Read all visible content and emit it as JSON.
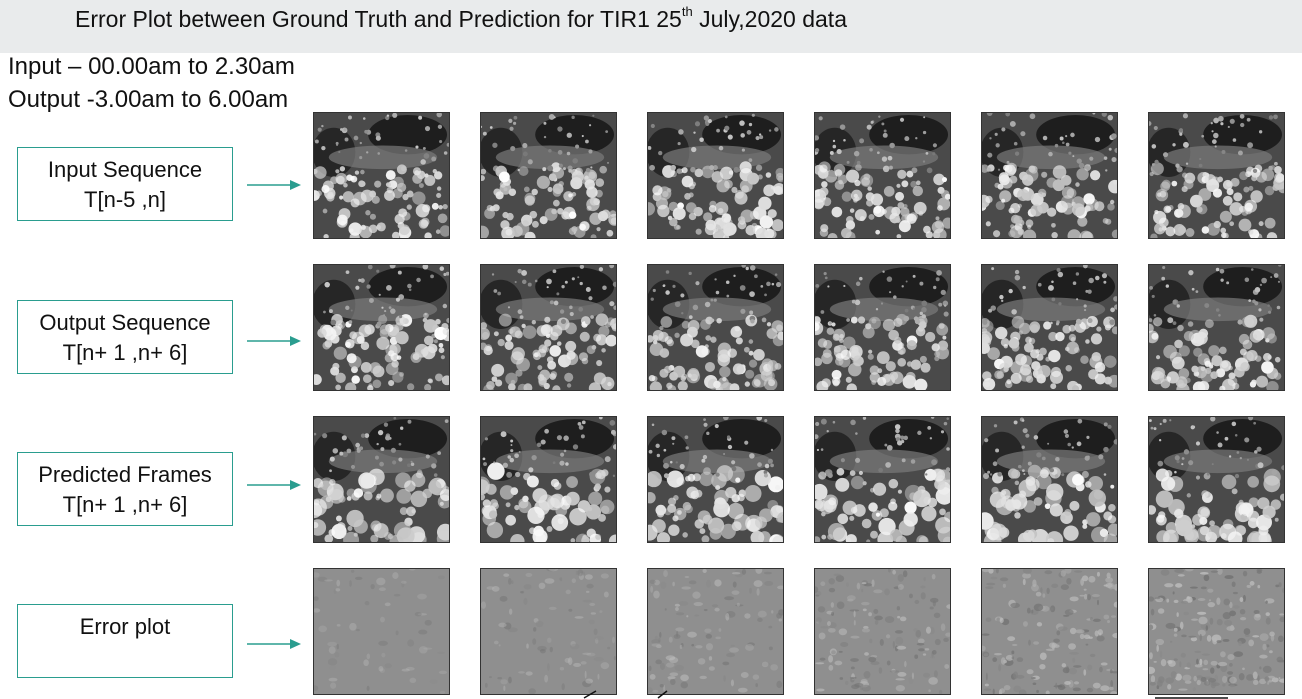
{
  "title": {
    "prefix": "Error Plot between Ground Truth and Prediction for TIR1 25",
    "superscript": "th",
    "suffix": " July,2020 data"
  },
  "info": {
    "input_range": "Input – 00.00am to 2.30am",
    "output_range": "Output -3.00am to 6.00am"
  },
  "rows": [
    {
      "label_line1": "Input Sequence",
      "label_line2": "T[n-5 ,n]",
      "kind": "ground"
    },
    {
      "label_line1": "Output Sequence",
      "label_line2": "T[n+ 1 ,n+ 6]",
      "kind": "ground"
    },
    {
      "label_line1": "Predicted Frames",
      "label_line2": "T[n+ 1 ,n+ 6]",
      "kind": "predicted"
    },
    {
      "label_line1": "Error plot",
      "label_line2": "",
      "kind": "error"
    }
  ],
  "frames_per_row": 6,
  "colors": {
    "label_border": "#2a9d8f",
    "arrow": "#2a9d8f",
    "title_bg": "#e9ebec"
  }
}
